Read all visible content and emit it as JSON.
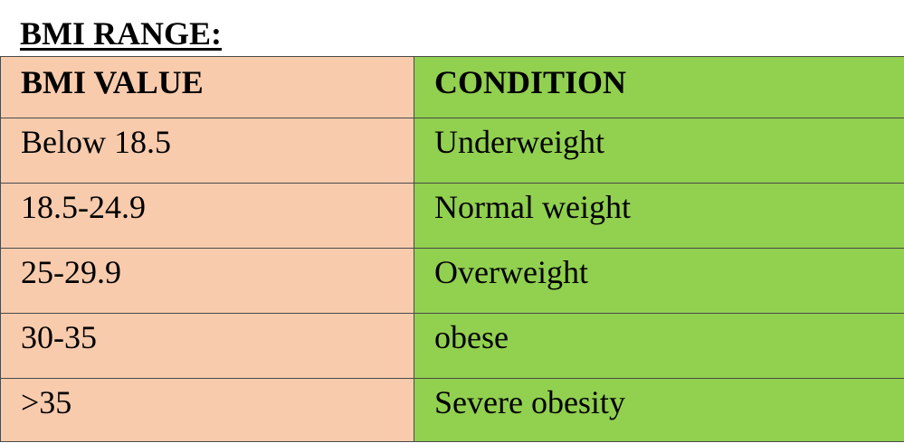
{
  "title": "BMI RANGE:",
  "table": {
    "headers": {
      "value": "BMI VALUE",
      "condition": "CONDITION"
    },
    "rows": [
      {
        "value": "Below 18.5",
        "condition": "Underweight"
      },
      {
        "value": "18.5-24.9",
        "condition": "Normal weight"
      },
      {
        "value": "25-29.9",
        "condition": "Overweight"
      },
      {
        "value": "30-35",
        "condition": "obese"
      },
      {
        "value": ">35",
        "condition": "Severe obesity"
      }
    ]
  },
  "colors": {
    "value_column": "#f8cbad",
    "condition_column": "#92d050",
    "border": "#4a4a4a"
  }
}
